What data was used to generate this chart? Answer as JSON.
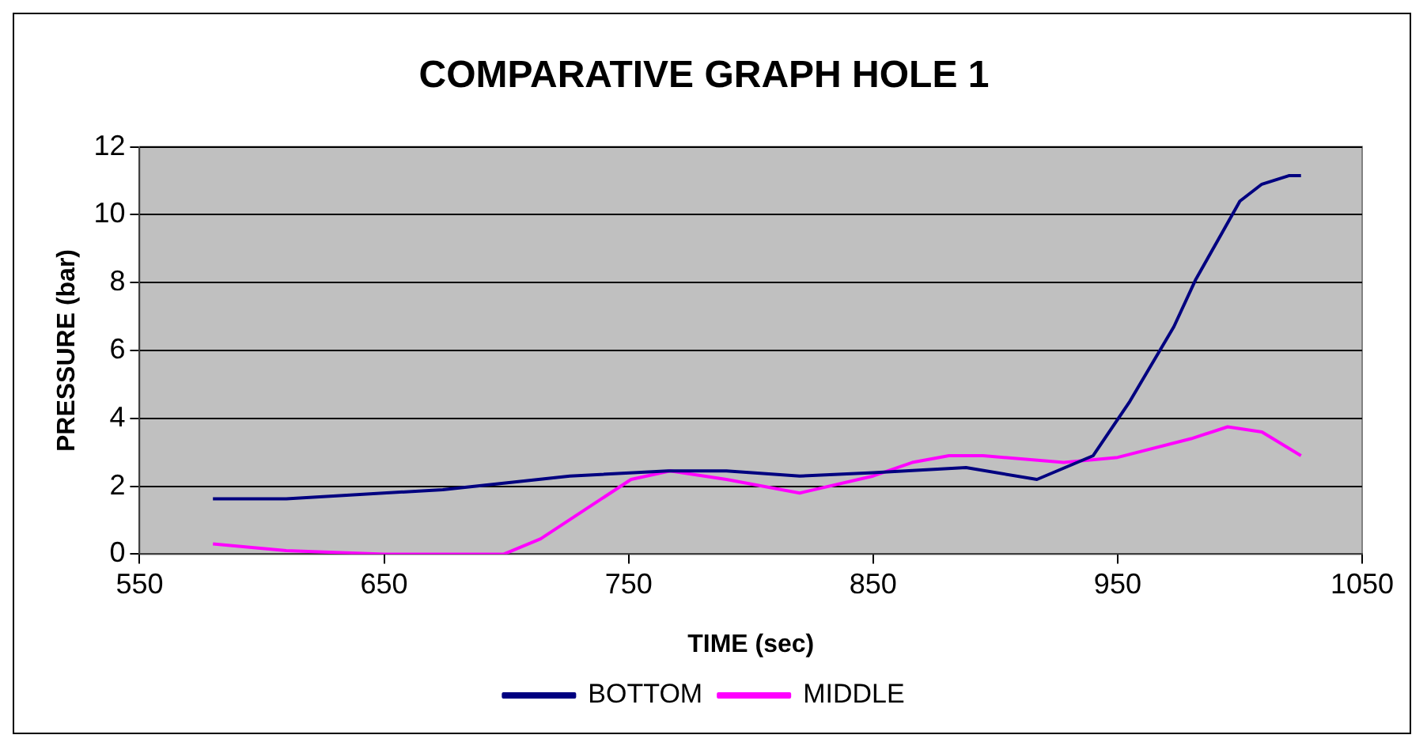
{
  "chart_data": {
    "type": "line",
    "title": "COMPARATIVE GRAPH HOLE 1",
    "xlabel": "TIME (sec)",
    "ylabel": "PRESSURE (bar)",
    "xlim": [
      550,
      1050
    ],
    "xticks": [
      550,
      650,
      750,
      850,
      950,
      1050
    ],
    "ylim": [
      0,
      12
    ],
    "yticks": [
      0,
      2,
      4,
      6,
      8,
      10,
      12
    ],
    "grid": "y",
    "legend": "bottom",
    "marker": "none",
    "series": [
      {
        "name": "BOTTOM",
        "color": "#000080",
        "x": [
          580,
          610,
          674,
          726,
          766,
          790,
          820,
          850,
          888,
          917,
          940,
          955,
          973,
          982,
          993,
          1000,
          1009,
          1020,
          1025
        ],
        "values": [
          1.63,
          1.63,
          1.9,
          2.3,
          2.45,
          2.45,
          2.3,
          2.4,
          2.55,
          2.2,
          2.9,
          4.5,
          6.7,
          8.1,
          9.5,
          10.4,
          10.9,
          11.15,
          11.15
        ]
      },
      {
        "name": "MIDDLE",
        "color": "#ff00ff",
        "x": [
          580,
          610,
          650,
          699,
          714,
          751,
          767,
          790,
          820,
          850,
          866,
          881,
          895,
          928,
          950,
          980,
          995,
          1009,
          1025
        ],
        "values": [
          0.3,
          0.1,
          0,
          0,
          0.45,
          2.2,
          2.45,
          2.2,
          1.8,
          2.3,
          2.7,
          2.9,
          2.9,
          2.7,
          2.85,
          3.4,
          3.75,
          3.6,
          2.9
        ]
      }
    ]
  }
}
